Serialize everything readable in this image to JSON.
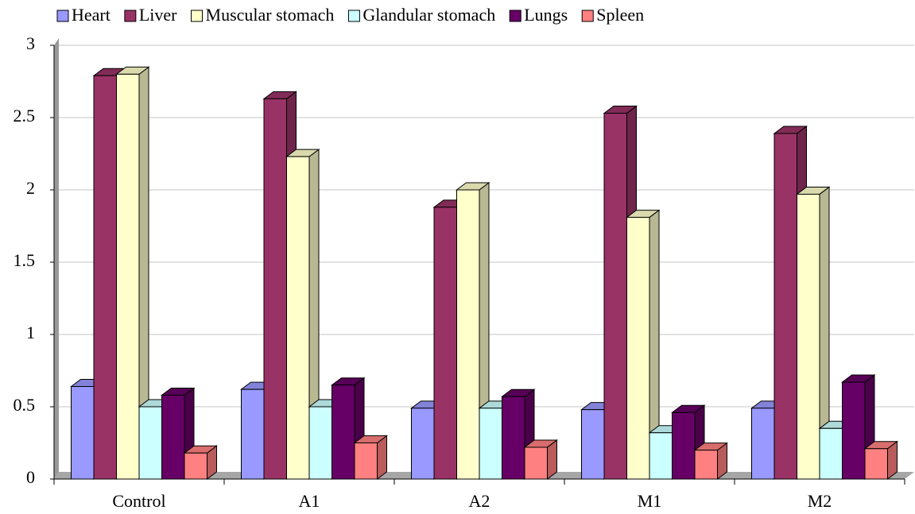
{
  "chart_data": {
    "type": "bar3d",
    "categories": [
      "Control",
      "A1",
      "A2",
      "M1",
      "M2"
    ],
    "series": [
      {
        "name": "Heart",
        "color": "#9999ff",
        "values": [
          0.64,
          0.62,
          0.49,
          0.48,
          0.49
        ]
      },
      {
        "name": "Liver",
        "color": "#993366",
        "values": [
          2.79,
          2.63,
          1.88,
          2.53,
          2.39
        ]
      },
      {
        "name": "Muscular stomach",
        "color": "#ffffcc",
        "values": [
          2.8,
          2.23,
          2.0,
          1.81,
          1.97
        ]
      },
      {
        "name": "Glandular stomach",
        "color": "#ccffff",
        "values": [
          0.5,
          0.5,
          0.49,
          0.32,
          0.35
        ]
      },
      {
        "name": "Lungs",
        "color": "#660066",
        "values": [
          0.58,
          0.65,
          0.57,
          0.46,
          0.67
        ]
      },
      {
        "name": "Spleen",
        "color": "#ff8080",
        "values": [
          0.18,
          0.25,
          0.22,
          0.2,
          0.21
        ]
      }
    ],
    "ylim": [
      0,
      3
    ],
    "yticks": [
      0,
      0.5,
      1,
      1.5,
      2,
      2.5,
      3
    ],
    "grid": true,
    "legend": "top"
  }
}
